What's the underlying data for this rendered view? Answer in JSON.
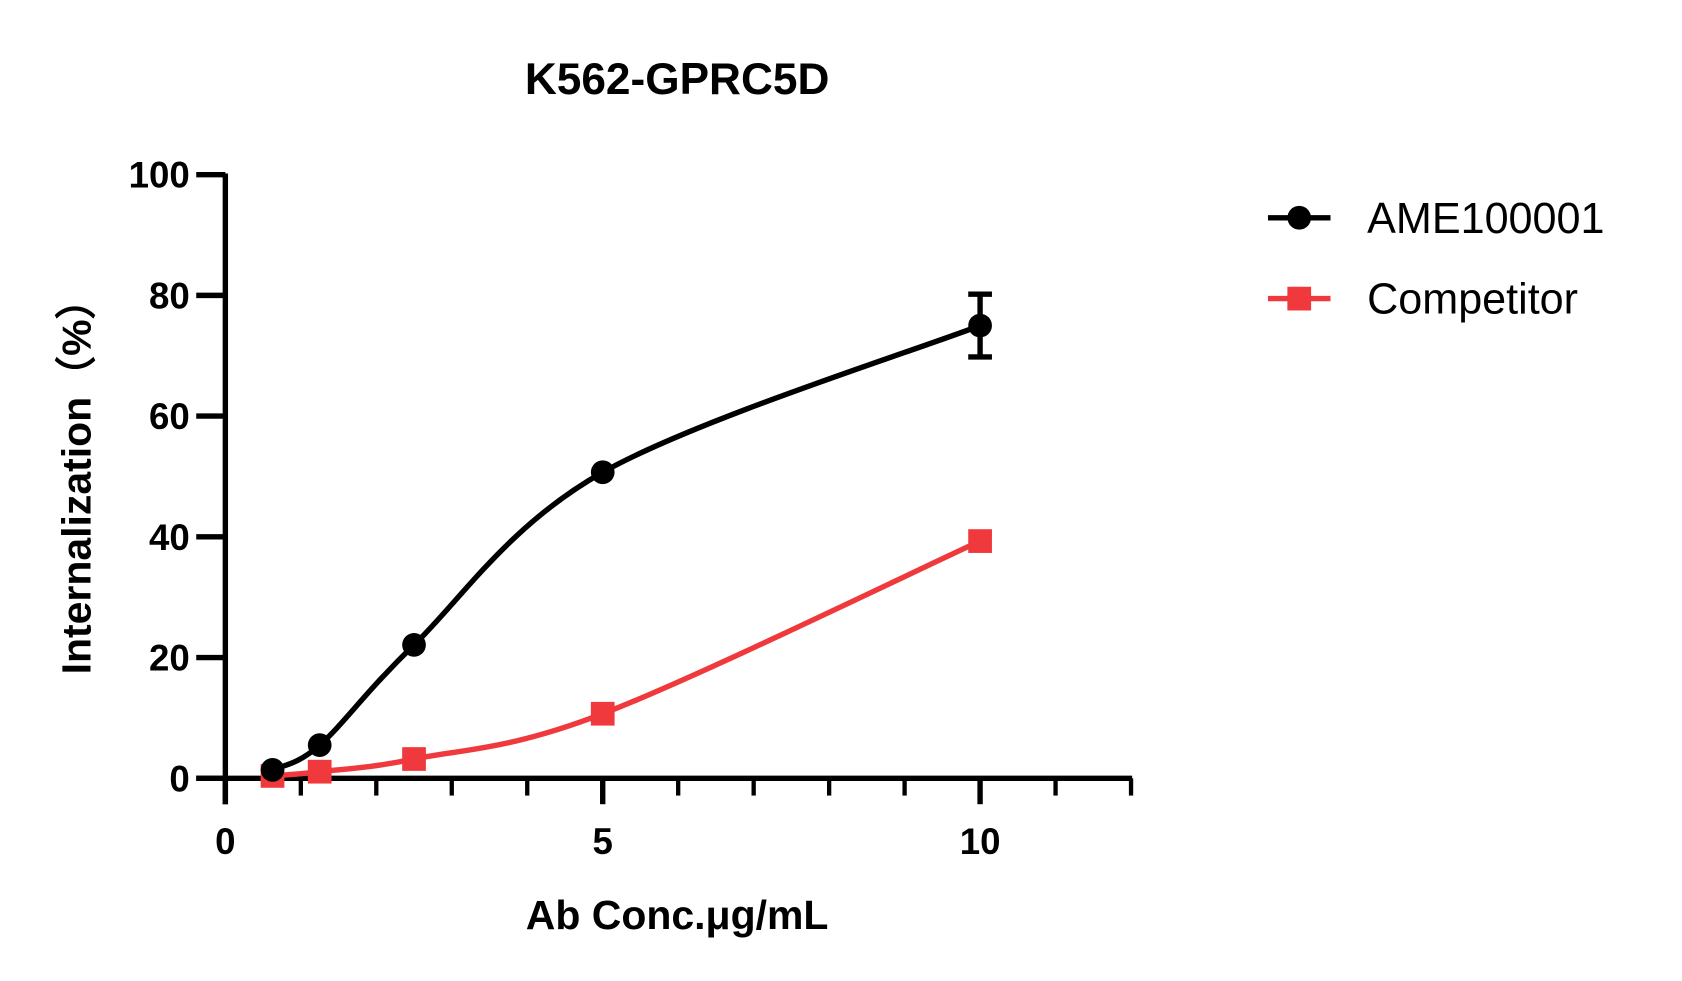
{
  "chart_data": {
    "type": "line",
    "title": "K562-GPRC5D",
    "xlabel": "Ab Conc.μg/mL",
    "ylabel": "Internalization（%）",
    "xlim": [
      0,
      12
    ],
    "ylim": [
      0,
      100
    ],
    "x_ticks": [
      0,
      5,
      10
    ],
    "x_minor_ticks": [
      1,
      2,
      3,
      4,
      6,
      7,
      8,
      9,
      11,
      12
    ],
    "y_ticks": [
      0,
      20,
      40,
      60,
      80,
      100
    ],
    "grid": false,
    "legend_position": "right",
    "x": [
      0.625,
      1.25,
      2.5,
      5,
      10
    ],
    "series": [
      {
        "name": "AME100001",
        "color": "#000000",
        "marker": "circle",
        "values": [
          1.4,
          5.5,
          22.1,
          50.7,
          75.0
        ],
        "error": [
          0,
          0,
          0,
          0,
          5.2
        ]
      },
      {
        "name": "Competitor",
        "color": "#f0393c",
        "marker": "square",
        "values": [
          0.4,
          1.1,
          3.2,
          10.7,
          39.3
        ],
        "error": [
          0,
          0,
          0,
          0,
          0
        ]
      }
    ]
  },
  "labels": {
    "title": "K562-GPRC5D",
    "xlabel": "Ab Conc.μg/mL",
    "ylabel": "Internalization（%）",
    "legend": [
      "AME100001",
      "Competitor"
    ],
    "x_tick_labels": [
      "0",
      "5",
      "10"
    ],
    "y_tick_labels": [
      "0",
      "20",
      "40",
      "60",
      "80",
      "100"
    ]
  }
}
